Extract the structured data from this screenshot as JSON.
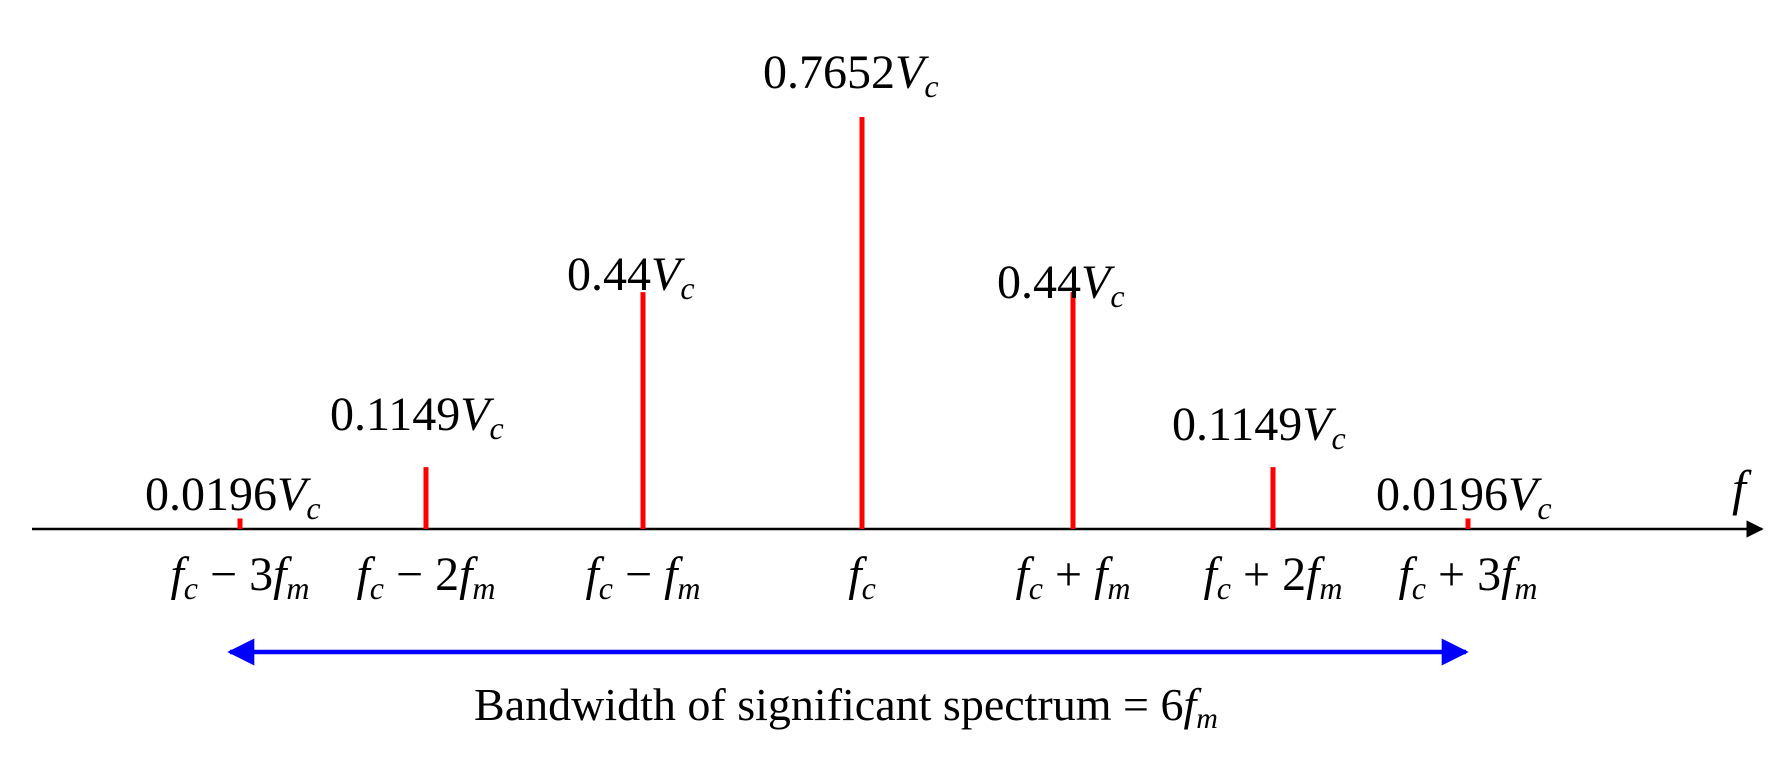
{
  "axis": {
    "label": "f",
    "color": "#000000"
  },
  "line_color": "#ff0000",
  "chart_data": {
    "type": "bar",
    "categories": [
      "fc − 3fm",
      "fc − 2fm",
      "fc − fm",
      "fc",
      "fc + fm",
      "fc + 2fm",
      "fc + 3fm"
    ],
    "values": [
      0.0196,
      0.1149,
      0.44,
      0.7652,
      0.44,
      0.1149,
      0.0196
    ]
  },
  "lines": [
    {
      "coef": "0.0196",
      "amp_sym": "V",
      "amp_sub": "c",
      "freq": {
        "base": "f",
        "base_sub": "c",
        "op": " − ",
        "mult": "3",
        "mod": "f",
        "mod_sub": "m"
      }
    },
    {
      "coef": "0.1149",
      "amp_sym": "V",
      "amp_sub": "c",
      "freq": {
        "base": "f",
        "base_sub": "c",
        "op": " − ",
        "mult": "2",
        "mod": "f",
        "mod_sub": "m"
      }
    },
    {
      "coef": "0.44",
      "amp_sym": "V",
      "amp_sub": "c",
      "freq": {
        "base": "f",
        "base_sub": "c",
        "op": " − ",
        "mult": "",
        "mod": "f",
        "mod_sub": "m"
      }
    },
    {
      "coef": "0.7652",
      "amp_sym": "V",
      "amp_sub": "c",
      "freq": {
        "base": "f",
        "base_sub": "c",
        "op": "",
        "mult": "",
        "mod": "",
        "mod_sub": ""
      }
    },
    {
      "coef": "0.44",
      "amp_sym": "V",
      "amp_sub": "c",
      "freq": {
        "base": "f",
        "base_sub": "c",
        "op": " + ",
        "mult": "",
        "mod": "f",
        "mod_sub": "m"
      }
    },
    {
      "coef": "0.1149",
      "amp_sym": "V",
      "amp_sub": "c",
      "freq": {
        "base": "f",
        "base_sub": "c",
        "op": " + ",
        "mult": "2",
        "mod": "f",
        "mod_sub": "m"
      }
    },
    {
      "coef": "0.0196",
      "amp_sym": "V",
      "amp_sub": "c",
      "freq": {
        "base": "f",
        "base_sub": "c",
        "op": " + ",
        "mult": "3",
        "mod": "f",
        "mod_sub": "m"
      }
    }
  ],
  "bandwidth": {
    "color": "#0000ff",
    "caption_text": "Bandwidth of significant spectrum = 6",
    "caption_var": "f",
    "caption_sub": "m"
  }
}
